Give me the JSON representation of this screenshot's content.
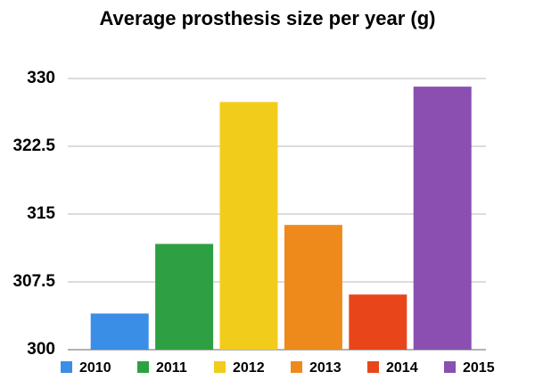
{
  "chart_data": {
    "type": "bar",
    "title": "Average prosthesis size per year (g)",
    "categories": [
      "2010",
      "2011",
      "2012",
      "2013",
      "2014",
      "2015"
    ],
    "values": [
      304.0,
      311.7,
      327.4,
      313.8,
      306.1,
      329.1
    ],
    "colors": [
      "#3a8ee6",
      "#2ea043",
      "#f2cc1b",
      "#ee8a1c",
      "#e8461a",
      "#8a4fb0"
    ],
    "ylim": [
      300,
      330
    ],
    "yticks": [
      300,
      307.5,
      315,
      322.5,
      330
    ],
    "grid": true,
    "legend": "bottom"
  }
}
